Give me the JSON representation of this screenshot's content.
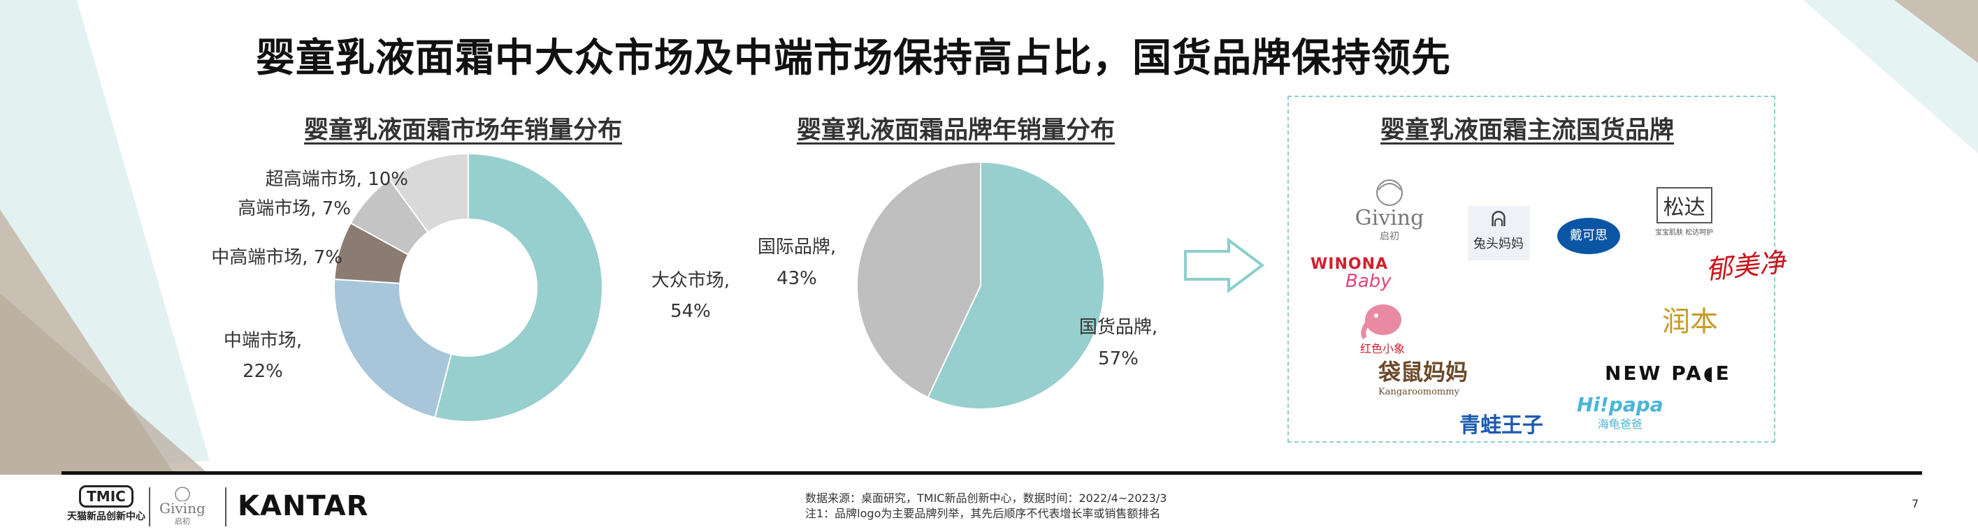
{
  "title": "婴童乳液面霜中大众市场及中端市场保持高占比，国货品牌保持领先",
  "colors": {
    "teal": "#96cfce",
    "light_blue": "#a7c6d9",
    "taupe": "#8a7c72",
    "light_gray": "#c4c4c4",
    "lighter_gray": "#d9d9d9",
    "gray": "#bfbfbf"
  },
  "chart_data": [
    {
      "type": "pie",
      "title": "婴童乳液面霜市场年销量分布",
      "donut": true,
      "slices": [
        {
          "label": "大众市场,",
          "value_label": "54%",
          "value": 54,
          "color": "#96cfce"
        },
        {
          "label": "中端市场,",
          "value_label": "22%",
          "value": 22,
          "color": "#a7c6d9"
        },
        {
          "label": "中高端市场, 7%",
          "value": 7,
          "color": "#8a7c72"
        },
        {
          "label": "高端市场, 7%",
          "value": 7,
          "color": "#c4c4c4"
        },
        {
          "label": "超高端市场, 10%",
          "value": 10,
          "color": "#d9d9d9"
        }
      ]
    },
    {
      "type": "pie",
      "title": "婴童乳液面霜品牌年销量分布",
      "donut": false,
      "slices": [
        {
          "label": "国货品牌,",
          "value_label": "57%",
          "value": 57,
          "color": "#96cfce"
        },
        {
          "label": "国际品牌,",
          "value_label": "43%",
          "value": 43,
          "color": "#bfbfbf"
        }
      ]
    }
  ],
  "brands": {
    "title": "婴童乳液面霜主流国货品牌",
    "logos": {
      "giving_main": "Giving",
      "giving_sub": "启初",
      "tutou": "兔头妈妈",
      "daikesi": "戴可思",
      "songda_main": "松达",
      "songda_sub": "宝宝肌肤  松达呵护",
      "winona_main": "WINONA",
      "winona_sub": "Baby",
      "yumeijing": "郁美净",
      "hongse_main": "红色小象",
      "runben": "润本",
      "daishu_main": "袋鼠妈妈",
      "daishu_sub": "Kangaroomommy",
      "newpage": "NEW PA◖E",
      "qingwa": "青蛙王子",
      "hipapa_main": "Hi!papa",
      "hipapa_sub": "海龟爸爸"
    }
  },
  "footer": {
    "source": "数据来源：桌面研究，TMIC新品创新中心，数据时间：2022/4~2023/3",
    "note": "注1：品牌logo为主要品牌列举，其先后顺序不代表增长率或销售额排名",
    "tmic_logo": "TMIC",
    "tmic_name": "天猫新品创新中心",
    "giving_logo": "Giving",
    "giving_sub": "启初",
    "kantar": "KANTAR",
    "page_number": "7"
  }
}
